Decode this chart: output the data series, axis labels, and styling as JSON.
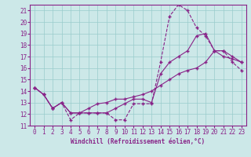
{
  "xlabel": "Windchill (Refroidissement éolien,°C)",
  "xlim": [
    -0.5,
    23.5
  ],
  "ylim": [
    11,
    21.5
  ],
  "yticks": [
    11,
    12,
    13,
    14,
    15,
    16,
    17,
    18,
    19,
    20,
    21
  ],
  "xticks": [
    0,
    1,
    2,
    3,
    4,
    5,
    6,
    7,
    8,
    9,
    10,
    11,
    12,
    13,
    14,
    15,
    16,
    17,
    18,
    19,
    20,
    21,
    22,
    23
  ],
  "background_color": "#cce8e8",
  "line_color": "#882288",
  "grid_color": "#99cccc",
  "lines": [
    {
      "style": "--",
      "x": [
        0,
        1,
        2,
        3,
        4,
        5,
        6,
        7,
        8,
        9,
        10,
        11,
        12,
        13,
        14,
        15,
        16,
        17,
        18,
        19,
        20,
        21,
        22,
        23
      ],
      "y": [
        14.3,
        13.7,
        12.5,
        13.0,
        11.5,
        12.1,
        12.1,
        12.1,
        12.1,
        11.5,
        11.5,
        12.9,
        12.9,
        12.9,
        16.5,
        20.5,
        21.5,
        21.0,
        19.5,
        18.8,
        17.5,
        17.5,
        16.5,
        15.8
      ]
    },
    {
      "style": "-",
      "x": [
        0,
        1,
        2,
        3,
        4,
        5,
        6,
        7,
        8,
        9,
        10,
        11,
        12,
        13,
        14,
        15,
        16,
        17,
        18,
        19,
        20,
        21,
        22,
        23
      ],
      "y": [
        14.3,
        13.7,
        12.5,
        13.0,
        12.1,
        12.1,
        12.1,
        12.1,
        12.1,
        12.5,
        12.9,
        13.3,
        13.3,
        13.0,
        15.5,
        16.5,
        17.0,
        17.5,
        18.8,
        19.0,
        17.5,
        17.5,
        17.0,
        16.5
      ]
    },
    {
      "style": "-",
      "x": [
        0,
        1,
        2,
        3,
        4,
        5,
        6,
        7,
        8,
        9,
        10,
        11,
        12,
        13,
        14,
        15,
        16,
        17,
        18,
        19,
        20,
        21,
        22,
        23
      ],
      "y": [
        14.3,
        13.7,
        12.5,
        13.0,
        12.1,
        12.1,
        12.5,
        12.9,
        13.0,
        13.3,
        13.3,
        13.5,
        13.7,
        14.0,
        14.5,
        15.0,
        15.5,
        15.8,
        16.0,
        16.5,
        17.5,
        17.0,
        16.8,
        16.5
      ]
    }
  ]
}
